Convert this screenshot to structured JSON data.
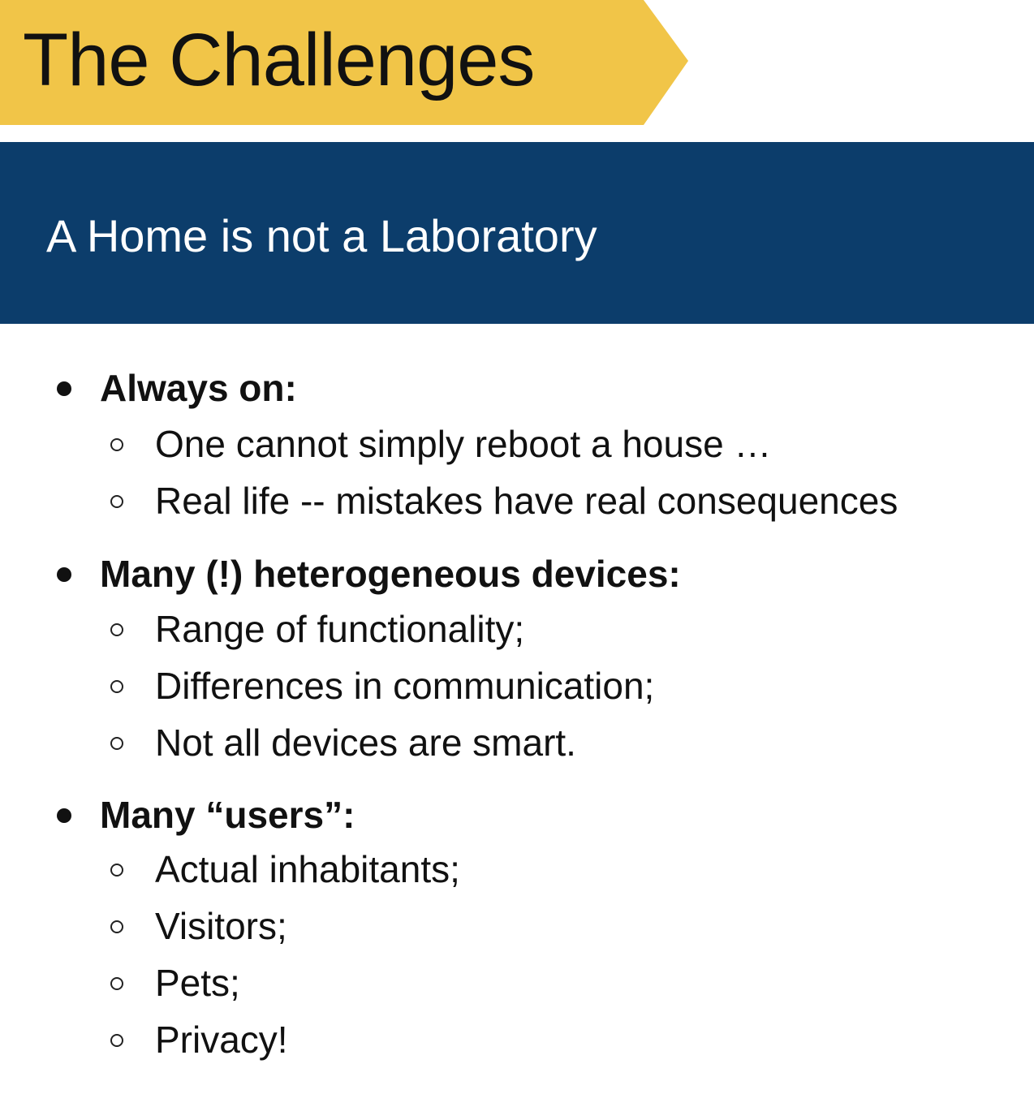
{
  "slide": {
    "title": "The Challenges",
    "subtitle": "A Home is not a Laboratory",
    "colors": {
      "title_banner": "#f1c548",
      "subtitle_band": "#0c3d6b",
      "subtitle_text": "#ffffff",
      "body_text": "#111111"
    },
    "bullets": [
      {
        "label": "Always on:",
        "subitems": [
          "One cannot simply reboot a house …",
          "Real life -- mistakes have real consequences"
        ]
      },
      {
        "label": "Many (!) heterogeneous devices:",
        "subitems": [
          "Range of functionality;",
          "Differences in communication;",
          "Not all devices are smart."
        ]
      },
      {
        "label": "Many “users”:",
        "subitems": [
          "Actual inhabitants;",
          "Visitors;",
          "Pets;",
          "Privacy!"
        ]
      }
    ]
  }
}
